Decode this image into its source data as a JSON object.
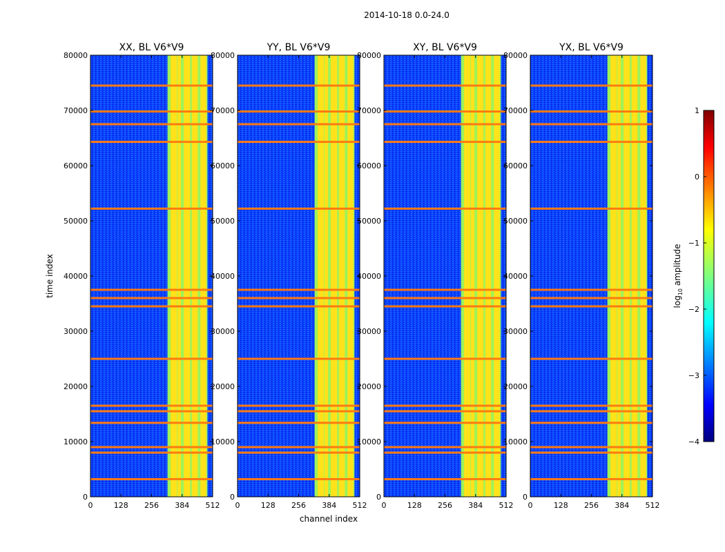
{
  "suptitle": "2014-10-18 0.0-24.0",
  "chart_data": {
    "type": "heatmap",
    "xlabel": "channel index",
    "ylabel": "time index",
    "x_ticks": [
      0,
      128,
      256,
      384,
      512
    ],
    "y_ticks": [
      0,
      10000,
      20000,
      30000,
      40000,
      50000,
      60000,
      70000,
      80000
    ],
    "xlim": [
      0,
      512
    ],
    "ylim": [
      0,
      80000
    ],
    "panels": [
      {
        "title": "XX, BL V6*V9",
        "band_start": 323,
        "band_end": 490
      },
      {
        "title": "YY, BL V6*V9",
        "band_start": 323,
        "band_end": 490
      },
      {
        "title": "XY, BL V6*V9",
        "band_start": 323,
        "band_end": 490
      },
      {
        "title": "YX, BL V6*V9",
        "band_start": 323,
        "band_end": 490
      }
    ],
    "band_columns": [
      343,
      355,
      372,
      398,
      410,
      432,
      442,
      468,
      478
    ],
    "rfi_rows": [
      3200,
      8000,
      9000,
      13400,
      15500,
      16500,
      25000,
      34500,
      36000,
      37500,
      52200,
      64300,
      67500,
      69800,
      74500
    ],
    "colorbar": {
      "label": "log10 amplitude",
      "range": [
        -4,
        1
      ],
      "ticks": [
        "1",
        "0",
        "−1",
        "−2",
        "−3",
        "−4"
      ],
      "colormap": "jet"
    }
  }
}
